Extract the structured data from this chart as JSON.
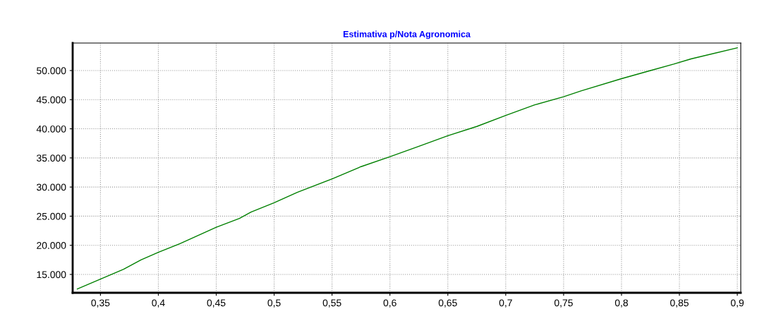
{
  "chart_data": {
    "type": "line",
    "title": "Estimativa p/Nota Agronomica",
    "x": [
      0.33,
      0.35,
      0.37,
      0.385,
      0.4,
      0.42,
      0.45,
      0.47,
      0.48,
      0.5,
      0.52,
      0.55,
      0.575,
      0.6,
      0.625,
      0.65,
      0.675,
      0.7,
      0.725,
      0.75,
      0.765,
      0.8,
      0.825,
      0.845,
      0.86,
      0.9
    ],
    "series": [
      {
        "color": "#008000",
        "values": [
          12500,
          14200,
          15900,
          17500,
          18800,
          20400,
          23100,
          24600,
          25700,
          27300,
          29100,
          31400,
          33500,
          35200,
          37000,
          38800,
          40400,
          42300,
          44100,
          45500,
          46500,
          48600,
          50000,
          51100,
          52000,
          53900
        ]
      }
    ],
    "xlim": [
      0.326,
      0.903
    ],
    "ylim": [
      11850,
      54720
    ],
    "xticks": [
      {
        "value": 0.35,
        "label": "0,35"
      },
      {
        "value": 0.4,
        "label": "0,4"
      },
      {
        "value": 0.45,
        "label": "0,45"
      },
      {
        "value": 0.5,
        "label": "0,5"
      },
      {
        "value": 0.55,
        "label": "0,55"
      },
      {
        "value": 0.6,
        "label": "0,6"
      },
      {
        "value": 0.65,
        "label": "0,65"
      },
      {
        "value": 0.7,
        "label": "0,7"
      },
      {
        "value": 0.75,
        "label": "0,75"
      },
      {
        "value": 0.8,
        "label": "0,8"
      },
      {
        "value": 0.85,
        "label": "0,85"
      },
      {
        "value": 0.9,
        "label": "0,9"
      }
    ],
    "yticks": [
      {
        "value": 15000,
        "label": "15.000"
      },
      {
        "value": 20000,
        "label": "20.000"
      },
      {
        "value": 25000,
        "label": "25.000"
      },
      {
        "value": 30000,
        "label": "30.000"
      },
      {
        "value": 35000,
        "label": "35.000"
      },
      {
        "value": 40000,
        "label": "40.000"
      },
      {
        "value": 45000,
        "label": "45.000"
      },
      {
        "value": 50000,
        "label": "50.000"
      }
    ],
    "grid": true,
    "marker": "none",
    "line_style": "solid"
  }
}
